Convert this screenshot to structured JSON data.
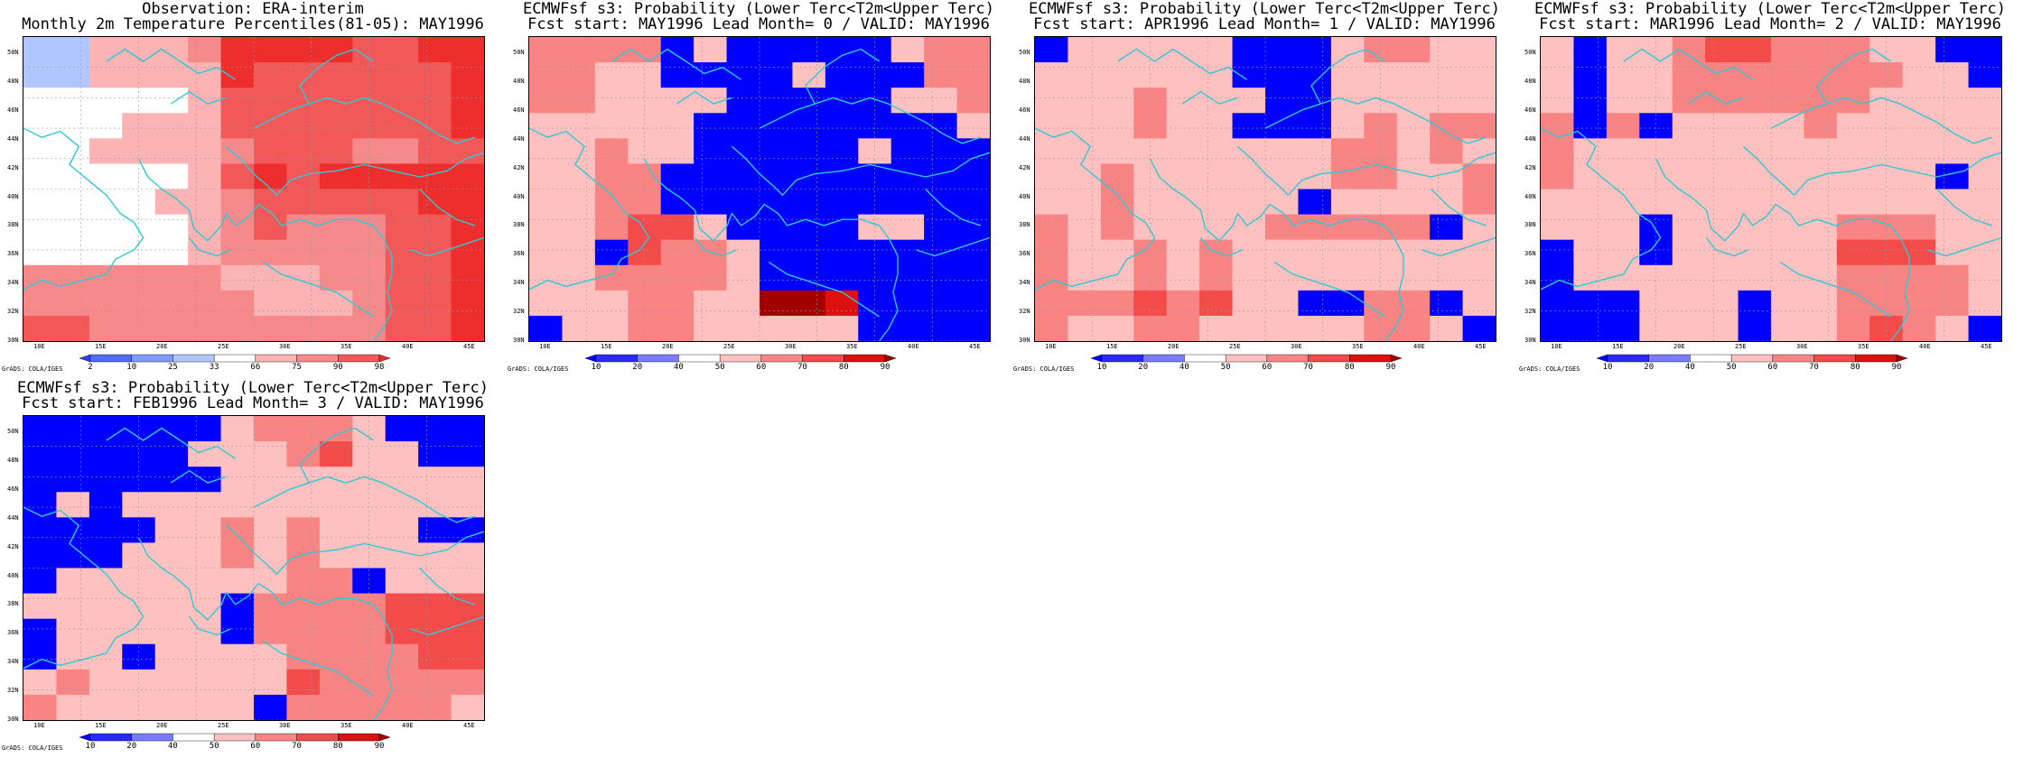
{
  "panels": [
    {
      "id": "obs",
      "title_line1": "Observation: ERA-interim",
      "title_line2": "Monthly 2m Temperature Percentiles(81-05): MAY1996",
      "colorbar": {
        "labels": [
          "2",
          "10",
          "25",
          "33",
          "66",
          "75",
          "90",
          "98"
        ],
        "colors": [
          "#2b3ef7",
          "#4f6cfb",
          "#7f9cfd",
          "#b2c6fe",
          "#ffffff",
          "#fbb3b3",
          "#f68a8a",
          "#f25858",
          "#ee2d2d"
        ]
      },
      "credit": "GrADS: COLA/IGES",
      "grid": [
        [
          3,
          3,
          5,
          5,
          5,
          6,
          8,
          8,
          8,
          8,
          7,
          7,
          8,
          8
        ],
        [
          3,
          3,
          5,
          5,
          5,
          5,
          8,
          7,
          7,
          7,
          7,
          7,
          7,
          8
        ],
        [
          4,
          4,
          4,
          4,
          4,
          5,
          7,
          7,
          7,
          7,
          7,
          7,
          7,
          8
        ],
        [
          4,
          4,
          4,
          5,
          5,
          5,
          7,
          7,
          7,
          7,
          7,
          7,
          7,
          8
        ],
        [
          4,
          4,
          5,
          5,
          5,
          5,
          6,
          7,
          7,
          7,
          6,
          6,
          7,
          7
        ],
        [
          4,
          4,
          4,
          4,
          4,
          5,
          7,
          8,
          7,
          8,
          8,
          8,
          8,
          8
        ],
        [
          4,
          4,
          4,
          4,
          5,
          5,
          6,
          7,
          7,
          7,
          7,
          7,
          8,
          8
        ],
        [
          4,
          4,
          4,
          4,
          4,
          5,
          6,
          7,
          6,
          6,
          6,
          7,
          7,
          8
        ],
        [
          4,
          4,
          4,
          4,
          4,
          5,
          6,
          6,
          6,
          6,
          6,
          7,
          7,
          8
        ],
        [
          6,
          6,
          6,
          6,
          6,
          6,
          5,
          5,
          5,
          6,
          6,
          7,
          7,
          8
        ],
        [
          6,
          6,
          6,
          6,
          6,
          6,
          6,
          5,
          5,
          5,
          6,
          7,
          7,
          8
        ],
        [
          7,
          7,
          6,
          6,
          6,
          6,
          6,
          6,
          6,
          6,
          6,
          7,
          7,
          8
        ]
      ]
    },
    {
      "id": "lead0",
      "title_line1": "ECMWFsf s3: Probability (Lower Terc<T2m<Upper Terc)",
      "title_line2": "Fcst start: MAY1996  Lead Month= 0 / VALID: MAY1996",
      "colorbar": {
        "labels": [
          "10",
          "20",
          "40",
          "50",
          "60",
          "70",
          "80",
          "90"
        ],
        "colors": [
          "#0000ff",
          "#2a2aff",
          "#7b7bff",
          "#ffffff",
          "#ffc0c0",
          "#f88484",
          "#f34a4a",
          "#de0f0f",
          "#a30000"
        ]
      },
      "credit": "GrADS: COLA/IGES",
      "grid": [
        [
          5,
          5,
          5,
          5,
          0,
          4,
          0,
          0,
          0,
          0,
          0,
          4,
          5,
          5
        ],
        [
          5,
          5,
          4,
          4,
          0,
          0,
          0,
          0,
          4,
          0,
          0,
          0,
          5,
          5
        ],
        [
          5,
          5,
          4,
          4,
          4,
          4,
          0,
          0,
          0,
          0,
          0,
          4,
          4,
          5
        ],
        [
          4,
          4,
          4,
          4,
          4,
          0,
          0,
          0,
          0,
          0,
          0,
          0,
          0,
          4
        ],
        [
          4,
          4,
          5,
          4,
          4,
          0,
          0,
          0,
          0,
          0,
          4,
          0,
          0,
          0
        ],
        [
          4,
          4,
          5,
          5,
          0,
          0,
          0,
          0,
          0,
          0,
          0,
          0,
          0,
          0
        ],
        [
          4,
          4,
          5,
          5,
          0,
          0,
          0,
          0,
          0,
          0,
          0,
          0,
          0,
          0
        ],
        [
          4,
          4,
          5,
          6,
          6,
          4,
          0,
          0,
          0,
          0,
          4,
          4,
          0,
          0
        ],
        [
          4,
          4,
          0,
          6,
          5,
          5,
          4,
          0,
          0,
          0,
          0,
          0,
          0,
          0
        ],
        [
          4,
          4,
          5,
          5,
          5,
          5,
          4,
          0,
          0,
          0,
          0,
          0,
          0,
          0
        ],
        [
          4,
          4,
          4,
          5,
          5,
          4,
          4,
          8,
          8,
          7,
          0,
          0,
          0,
          0
        ],
        [
          0,
          4,
          4,
          5,
          5,
          4,
          4,
          4,
          4,
          4,
          0,
          0,
          0,
          0
        ]
      ]
    },
    {
      "id": "lead1",
      "title_line1": "ECMWFsf s3: Probability (Lower Terc<T2m<Upper Terc)",
      "title_line2": "Fcst start: APR1996  Lead Month= 1 / VALID: MAY1996",
      "colorbar": {
        "labels": [
          "10",
          "20",
          "40",
          "50",
          "60",
          "70",
          "80",
          "90"
        ],
        "colors": [
          "#0000ff",
          "#2a2aff",
          "#7b7bff",
          "#ffffff",
          "#ffc0c0",
          "#f88484",
          "#f34a4a",
          "#de0f0f",
          "#a30000"
        ]
      },
      "credit": "GrADS: COLA/IGES",
      "grid": [
        [
          0,
          4,
          4,
          4,
          4,
          4,
          0,
          0,
          0,
          4,
          5,
          5,
          4,
          4
        ],
        [
          4,
          4,
          4,
          4,
          4,
          4,
          0,
          0,
          0,
          4,
          4,
          4,
          4,
          4
        ],
        [
          4,
          4,
          4,
          5,
          4,
          4,
          4,
          0,
          0,
          4,
          4,
          4,
          4,
          4
        ],
        [
          4,
          4,
          4,
          5,
          4,
          4,
          0,
          0,
          0,
          4,
          5,
          4,
          5,
          5
        ],
        [
          4,
          4,
          4,
          4,
          4,
          4,
          4,
          4,
          4,
          5,
          5,
          4,
          5,
          4
        ],
        [
          4,
          4,
          5,
          4,
          4,
          4,
          4,
          4,
          4,
          5,
          5,
          4,
          4,
          5
        ],
        [
          4,
          4,
          5,
          4,
          4,
          4,
          4,
          4,
          0,
          4,
          4,
          4,
          4,
          5
        ],
        [
          5,
          4,
          5,
          4,
          4,
          4,
          4,
          5,
          5,
          5,
          5,
          5,
          0,
          4
        ],
        [
          5,
          4,
          4,
          5,
          4,
          5,
          4,
          4,
          4,
          4,
          4,
          4,
          4,
          4
        ],
        [
          5,
          4,
          4,
          5,
          4,
          5,
          4,
          4,
          4,
          4,
          4,
          4,
          4,
          4
        ],
        [
          5,
          5,
          5,
          6,
          5,
          6,
          4,
          4,
          0,
          0,
          5,
          5,
          0,
          4
        ],
        [
          5,
          4,
          4,
          5,
          5,
          4,
          4,
          4,
          4,
          4,
          5,
          5,
          4,
          0
        ]
      ]
    },
    {
      "id": "lead2",
      "title_line1": "ECMWFsf s3: Probability (Lower Terc<T2m<Upper Terc)",
      "title_line2": "Fcst start: MAR1996  Lead Month= 2 / VALID: MAY1996",
      "colorbar": {
        "labels": [
          "10",
          "20",
          "40",
          "50",
          "60",
          "70",
          "80",
          "90"
        ],
        "colors": [
          "#0000ff",
          "#2a2aff",
          "#7b7bff",
          "#ffffff",
          "#ffc0c0",
          "#f88484",
          "#f34a4a",
          "#de0f0f",
          "#a30000"
        ]
      },
      "credit": "GrADS: COLA/IGES",
      "grid": [
        [
          4,
          0,
          4,
          4,
          5,
          6,
          6,
          5,
          5,
          5,
          4,
          4,
          0,
          0
        ],
        [
          4,
          0,
          4,
          4,
          5,
          5,
          5,
          5,
          5,
          5,
          5,
          4,
          4,
          0
        ],
        [
          4,
          0,
          4,
          4,
          5,
          5,
          5,
          5,
          5,
          5,
          4,
          4,
          4,
          4
        ],
        [
          5,
          0,
          5,
          0,
          4,
          4,
          4,
          4,
          5,
          4,
          4,
          4,
          4,
          4
        ],
        [
          5,
          4,
          4,
          4,
          4,
          4,
          4,
          4,
          4,
          4,
          4,
          4,
          4,
          4
        ],
        [
          5,
          4,
          4,
          4,
          4,
          4,
          4,
          4,
          4,
          4,
          4,
          4,
          0,
          4
        ],
        [
          4,
          4,
          4,
          4,
          4,
          4,
          4,
          4,
          4,
          4,
          4,
          4,
          4,
          4
        ],
        [
          4,
          4,
          4,
          0,
          4,
          4,
          4,
          4,
          4,
          5,
          5,
          5,
          4,
          4
        ],
        [
          0,
          4,
          4,
          0,
          4,
          4,
          4,
          4,
          4,
          6,
          6,
          6,
          4,
          4
        ],
        [
          0,
          4,
          4,
          4,
          4,
          4,
          4,
          4,
          4,
          5,
          5,
          5,
          5,
          4
        ],
        [
          0,
          0,
          0,
          4,
          4,
          4,
          0,
          4,
          4,
          5,
          5,
          5,
          5,
          4
        ],
        [
          0,
          0,
          0,
          4,
          4,
          4,
          0,
          4,
          4,
          5,
          6,
          5,
          4,
          0
        ]
      ]
    },
    {
      "id": "lead3",
      "title_line1": "ECMWFsf s3: Probability (Lower Terc<T2m<Upper Terc)",
      "title_line2": "Fcst start: FEB1996  Lead Month= 3 / VALID: MAY1996",
      "colorbar": {
        "labels": [
          "10",
          "20",
          "40",
          "50",
          "60",
          "70",
          "80",
          "90"
        ],
        "colors": [
          "#0000ff",
          "#2a2aff",
          "#7b7bff",
          "#ffffff",
          "#ffc0c0",
          "#f88484",
          "#f34a4a",
          "#de0f0f",
          "#a30000"
        ]
      },
      "credit": "GrADS: COLA/IGES",
      "grid": [
        [
          0,
          0,
          0,
          0,
          0,
          0,
          4,
          5,
          5,
          5,
          4,
          0,
          0,
          0
        ],
        [
          0,
          0,
          0,
          0,
          0,
          4,
          4,
          4,
          5,
          6,
          4,
          4,
          0,
          0
        ],
        [
          0,
          0,
          0,
          0,
          0,
          0,
          4,
          4,
          4,
          4,
          4,
          4,
          4,
          4
        ],
        [
          0,
          4,
          0,
          4,
          4,
          4,
          4,
          4,
          4,
          4,
          4,
          4,
          4,
          4
        ],
        [
          0,
          0,
          0,
          0,
          4,
          4,
          5,
          4,
          5,
          4,
          4,
          4,
          0,
          0
        ],
        [
          0,
          0,
          0,
          4,
          4,
          4,
          5,
          4,
          5,
          4,
          4,
          4,
          4,
          4
        ],
        [
          0,
          4,
          4,
          4,
          4,
          4,
          4,
          4,
          5,
          5,
          0,
          4,
          4,
          4
        ],
        [
          4,
          4,
          4,
          4,
          4,
          4,
          0,
          5,
          5,
          5,
          5,
          6,
          6,
          6
        ],
        [
          0,
          4,
          4,
          4,
          4,
          4,
          0,
          5,
          5,
          5,
          5,
          6,
          6,
          6
        ],
        [
          0,
          4,
          4,
          0,
          4,
          4,
          4,
          4,
          5,
          5,
          5,
          5,
          6,
          6
        ],
        [
          4,
          5,
          4,
          4,
          4,
          4,
          4,
          4,
          6,
          5,
          5,
          5,
          5,
          5
        ],
        [
          5,
          4,
          4,
          4,
          4,
          4,
          4,
          0,
          5,
          5,
          5,
          5,
          5,
          4
        ]
      ]
    }
  ],
  "lat_labels": [
    "50N",
    "48N",
    "46N",
    "44N",
    "42N",
    "40N",
    "38N",
    "36N",
    "34N",
    "32N",
    "30N"
  ],
  "lon_labels": [
    "10E",
    "15E",
    "20E",
    "25E",
    "30E",
    "35E",
    "40E",
    "45E"
  ],
  "coast_color": "#2fc9d6"
}
